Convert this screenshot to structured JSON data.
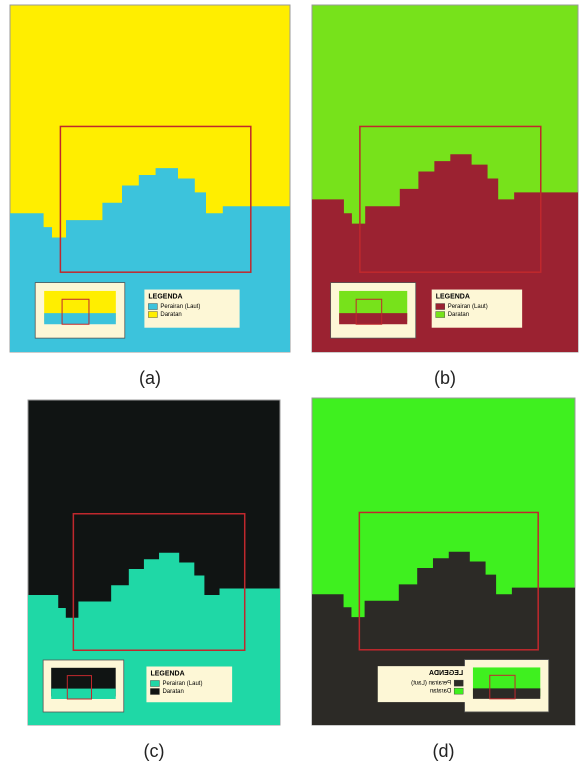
{
  "panels": [
    {
      "label": "(a)",
      "legend": {
        "title": "LEGENDA",
        "items": [
          "Perairan (Laut)",
          "Daratan"
        ]
      }
    },
    {
      "label": "(b)",
      "legend": {
        "title": "LEGENDA",
        "items": [
          "Perairan (Laut)",
          "Daratan"
        ]
      }
    },
    {
      "label": "(c)",
      "legend": {
        "title": "LEGENDA",
        "items": [
          "Perairan (Laut)",
          "Daratan"
        ]
      }
    },
    {
      "label": "(d)",
      "legend": {
        "title": "LEGENDA",
        "items": [
          "Perairan (Laut)",
          "Daratan"
        ]
      }
    }
  ]
}
